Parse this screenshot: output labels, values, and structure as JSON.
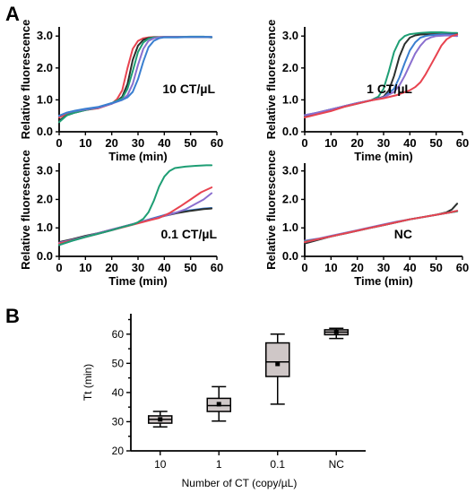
{
  "labels": {
    "panel_a": "A",
    "panel_b": "B"
  },
  "line_style": {
    "xlabel": "Time (min)",
    "ylabel": "Relative fluorescence",
    "xticks": [
      0,
      10,
      20,
      30,
      40,
      50,
      60
    ],
    "yticks": [
      0.0,
      1.0,
      2.0,
      3.0
    ],
    "colors": [
      "#e8434f",
      "#2b2f2d",
      "#3a7fd0",
      "#8a6fcf",
      "#1e9e74"
    ]
  },
  "chart_data": [
    {
      "type": "line",
      "annotation": "10 CT/µL",
      "xlim": [
        0,
        60
      ],
      "ylim": [
        0,
        3.4
      ],
      "series": [
        {
          "color": "#e8434f",
          "x": [
            0,
            3,
            6,
            10,
            15,
            20,
            22,
            24,
            26,
            28,
            30,
            32,
            34,
            36,
            40,
            45,
            50,
            55,
            58
          ],
          "y": [
            0.45,
            0.56,
            0.62,
            0.68,
            0.74,
            0.88,
            1.02,
            1.3,
            2.0,
            2.6,
            2.85,
            2.93,
            2.96,
            2.97,
            2.97,
            2.97,
            2.97,
            2.97,
            2.96
          ]
        },
        {
          "color": "#2b2f2d",
          "x": [
            0,
            3,
            6,
            10,
            15,
            20,
            22,
            24,
            26,
            28,
            30,
            32,
            34,
            36,
            40,
            45,
            50,
            55,
            58
          ],
          "y": [
            0.35,
            0.52,
            0.6,
            0.68,
            0.76,
            0.88,
            0.96,
            1.1,
            1.5,
            2.25,
            2.7,
            2.88,
            2.94,
            2.96,
            2.97,
            2.97,
            2.97,
            2.97,
            2.97
          ]
        },
        {
          "color": "#1e9e74",
          "x": [
            0,
            3,
            6,
            10,
            15,
            20,
            24,
            26,
            28,
            30,
            32,
            34,
            36,
            40,
            45,
            50,
            55,
            58
          ],
          "y": [
            0.3,
            0.52,
            0.6,
            0.68,
            0.76,
            0.9,
            1.05,
            1.35,
            1.9,
            2.5,
            2.8,
            2.92,
            2.96,
            2.97,
            2.97,
            2.98,
            2.98,
            2.96
          ]
        },
        {
          "color": "#8a6fcf",
          "x": [
            0,
            3,
            6,
            10,
            15,
            20,
            24,
            26,
            28,
            30,
            32,
            34,
            36,
            38,
            40,
            45,
            50,
            55,
            58
          ],
          "y": [
            0.5,
            0.6,
            0.65,
            0.7,
            0.76,
            0.88,
            1.0,
            1.15,
            1.5,
            2.1,
            2.6,
            2.85,
            2.93,
            2.96,
            2.97,
            2.97,
            2.97,
            2.97,
            2.97
          ]
        },
        {
          "color": "#3a7fd0",
          "x": [
            0,
            3,
            6,
            10,
            15,
            20,
            24,
            26,
            28,
            30,
            32,
            34,
            36,
            38,
            40,
            45,
            50,
            55,
            58
          ],
          "y": [
            0.5,
            0.6,
            0.66,
            0.72,
            0.78,
            0.9,
            1.0,
            1.08,
            1.25,
            1.65,
            2.2,
            2.65,
            2.85,
            2.93,
            2.96,
            2.96,
            2.97,
            2.97,
            2.97
          ]
        }
      ]
    },
    {
      "type": "line",
      "annotation": "1 CT/µL",
      "xlim": [
        0,
        60
      ],
      "ylim": [
        0,
        3.4
      ],
      "series": [
        {
          "color": "#1e9e74",
          "x": [
            0,
            5,
            10,
            15,
            20,
            25,
            28,
            30,
            32,
            34,
            36,
            38,
            40,
            44,
            48,
            52,
            56,
            58
          ],
          "y": [
            0.5,
            0.58,
            0.68,
            0.78,
            0.88,
            0.98,
            1.1,
            1.35,
            1.9,
            2.5,
            2.85,
            3.0,
            3.06,
            3.1,
            3.12,
            3.12,
            3.1,
            3.1
          ]
        },
        {
          "color": "#2b2f2d",
          "x": [
            0,
            5,
            10,
            15,
            20,
            25,
            30,
            32,
            34,
            36,
            38,
            40,
            42,
            44,
            48,
            52,
            56,
            58
          ],
          "y": [
            0.5,
            0.6,
            0.7,
            0.8,
            0.9,
            0.98,
            1.1,
            1.3,
            1.75,
            2.35,
            2.75,
            2.95,
            3.02,
            3.05,
            3.06,
            3.06,
            3.06,
            3.06
          ]
        },
        {
          "color": "#3a7fd0",
          "x": [
            0,
            5,
            10,
            15,
            20,
            25,
            30,
            34,
            36,
            38,
            40,
            42,
            44,
            46,
            48,
            52,
            56,
            58
          ],
          "y": [
            0.52,
            0.6,
            0.7,
            0.8,
            0.9,
            0.98,
            1.08,
            1.35,
            1.7,
            2.15,
            2.55,
            2.8,
            2.95,
            3.0,
            3.03,
            3.05,
            3.05,
            3.05
          ]
        },
        {
          "color": "#8a6fcf",
          "x": [
            0,
            5,
            10,
            15,
            20,
            25,
            30,
            34,
            36,
            38,
            40,
            42,
            44,
            46,
            48,
            50,
            54,
            58
          ],
          "y": [
            0.52,
            0.6,
            0.7,
            0.8,
            0.9,
            0.98,
            1.08,
            1.25,
            1.45,
            1.75,
            2.1,
            2.45,
            2.7,
            2.88,
            2.96,
            3.0,
            3.02,
            3.0
          ]
        },
        {
          "color": "#e8434f",
          "x": [
            0,
            5,
            10,
            15,
            20,
            25,
            30,
            35,
            40,
            42,
            44,
            46,
            48,
            50,
            52,
            54,
            56,
            58
          ],
          "y": [
            0.45,
            0.55,
            0.65,
            0.78,
            0.88,
            0.98,
            1.05,
            1.15,
            1.3,
            1.4,
            1.55,
            1.8,
            2.1,
            2.4,
            2.7,
            2.9,
            3.0,
            3.05
          ]
        }
      ]
    },
    {
      "type": "line",
      "annotation": "0.1 CT/µL",
      "xlim": [
        0,
        60
      ],
      "ylim": [
        0,
        3.4
      ],
      "series": [
        {
          "color": "#3a7fd0",
          "x": [
            0,
            5,
            10,
            15,
            20,
            25,
            30,
            35,
            40,
            45,
            50,
            55,
            58
          ],
          "y": [
            0.4,
            0.55,
            0.68,
            0.8,
            0.92,
            1.05,
            1.18,
            1.32,
            1.45,
            1.55,
            1.62,
            1.68,
            1.7
          ]
        },
        {
          "color": "#2b2f2d",
          "x": [
            0,
            5,
            10,
            15,
            20,
            25,
            30,
            35,
            40,
            45,
            50,
            55,
            58
          ],
          "y": [
            0.5,
            0.6,
            0.72,
            0.82,
            0.94,
            1.06,
            1.18,
            1.3,
            1.42,
            1.52,
            1.6,
            1.66,
            1.68
          ]
        },
        {
          "color": "#8a6fcf",
          "x": [
            0,
            5,
            10,
            15,
            20,
            25,
            30,
            35,
            40,
            44,
            48,
            52,
            55,
            58
          ],
          "y": [
            0.48,
            0.58,
            0.7,
            0.82,
            0.94,
            1.06,
            1.18,
            1.3,
            1.42,
            1.52,
            1.65,
            1.85,
            2.0,
            2.22
          ]
        },
        {
          "color": "#e8434f",
          "x": [
            0,
            5,
            10,
            15,
            20,
            25,
            30,
            35,
            38,
            42,
            46,
            50,
            54,
            58
          ],
          "y": [
            0.45,
            0.56,
            0.68,
            0.8,
            0.92,
            1.04,
            1.16,
            1.28,
            1.35,
            1.52,
            1.75,
            2.0,
            2.25,
            2.42
          ]
        },
        {
          "color": "#1e9e74",
          "x": [
            0,
            5,
            10,
            15,
            20,
            25,
            28,
            30,
            32,
            34,
            36,
            38,
            40,
            42,
            44,
            48,
            52,
            56,
            58
          ],
          "y": [
            0.4,
            0.55,
            0.68,
            0.8,
            0.92,
            1.05,
            1.12,
            1.2,
            1.32,
            1.55,
            1.95,
            2.45,
            2.8,
            3.0,
            3.1,
            3.15,
            3.18,
            3.2,
            3.2
          ]
        }
      ]
    },
    {
      "type": "line",
      "annotation": "NC",
      "xlim": [
        0,
        60
      ],
      "ylim": [
        0,
        3.4
      ],
      "series": [
        {
          "color": "#2b2f2d",
          "x": [
            0,
            5,
            10,
            15,
            20,
            25,
            30,
            35,
            40,
            45,
            50,
            54,
            56,
            58
          ],
          "y": [
            0.45,
            0.58,
            0.7,
            0.8,
            0.9,
            1.0,
            1.1,
            1.2,
            1.3,
            1.38,
            1.46,
            1.55,
            1.65,
            1.85
          ]
        },
        {
          "color": "#3a7fd0",
          "x": [
            0,
            5,
            10,
            15,
            20,
            25,
            30,
            35,
            40,
            45,
            50,
            55,
            58
          ],
          "y": [
            0.5,
            0.6,
            0.7,
            0.8,
            0.9,
            1.0,
            1.1,
            1.2,
            1.3,
            1.38,
            1.46,
            1.54,
            1.6
          ]
        },
        {
          "color": "#8a6fcf",
          "x": [
            0,
            5,
            10,
            15,
            20,
            25,
            30,
            35,
            40,
            45,
            50,
            55,
            58
          ],
          "y": [
            0.55,
            0.62,
            0.72,
            0.82,
            0.92,
            1.02,
            1.12,
            1.22,
            1.3,
            1.38,
            1.46,
            1.54,
            1.58
          ]
        },
        {
          "color": "#1e9e74",
          "x": [
            0,
            5,
            10,
            15,
            20,
            25,
            30,
            35,
            40,
            45,
            50,
            55,
            58
          ],
          "y": [
            0.52,
            0.6,
            0.7,
            0.8,
            0.9,
            1.0,
            1.1,
            1.2,
            1.3,
            1.38,
            1.46,
            1.54,
            1.58
          ]
        },
        {
          "color": "#e8434f",
          "x": [
            0,
            5,
            10,
            15,
            20,
            25,
            30,
            35,
            40,
            45,
            50,
            55,
            58
          ],
          "y": [
            0.5,
            0.6,
            0.7,
            0.8,
            0.9,
            1.0,
            1.1,
            1.2,
            1.3,
            1.38,
            1.46,
            1.54,
            1.6
          ]
        }
      ]
    },
    {
      "type": "box",
      "ylabel": "Tt (min)",
      "xlabel": "Number of CT (copy/µL)",
      "yticks": [
        20,
        30,
        40,
        50,
        60
      ],
      "ylim": [
        20,
        67
      ],
      "categories": [
        "10",
        "1",
        "0.1",
        "NC"
      ],
      "boxes": [
        {
          "min": 28.2,
          "q1": 29.5,
          "median": 30.8,
          "q3": 32.0,
          "max": 33.5,
          "mean": 30.8
        },
        {
          "min": 30.2,
          "q1": 33.5,
          "median": 35.5,
          "q3": 38.0,
          "max": 42.0,
          "mean": 36.0
        },
        {
          "min": 36.0,
          "q1": 45.5,
          "median": 50.5,
          "q3": 57.0,
          "max": 60.0,
          "mean": 49.8
        },
        {
          "min": 58.5,
          "q1": 59.8,
          "median": 60.7,
          "q3": 61.5,
          "max": 62.0,
          "mean": 60.8
        }
      ]
    }
  ]
}
